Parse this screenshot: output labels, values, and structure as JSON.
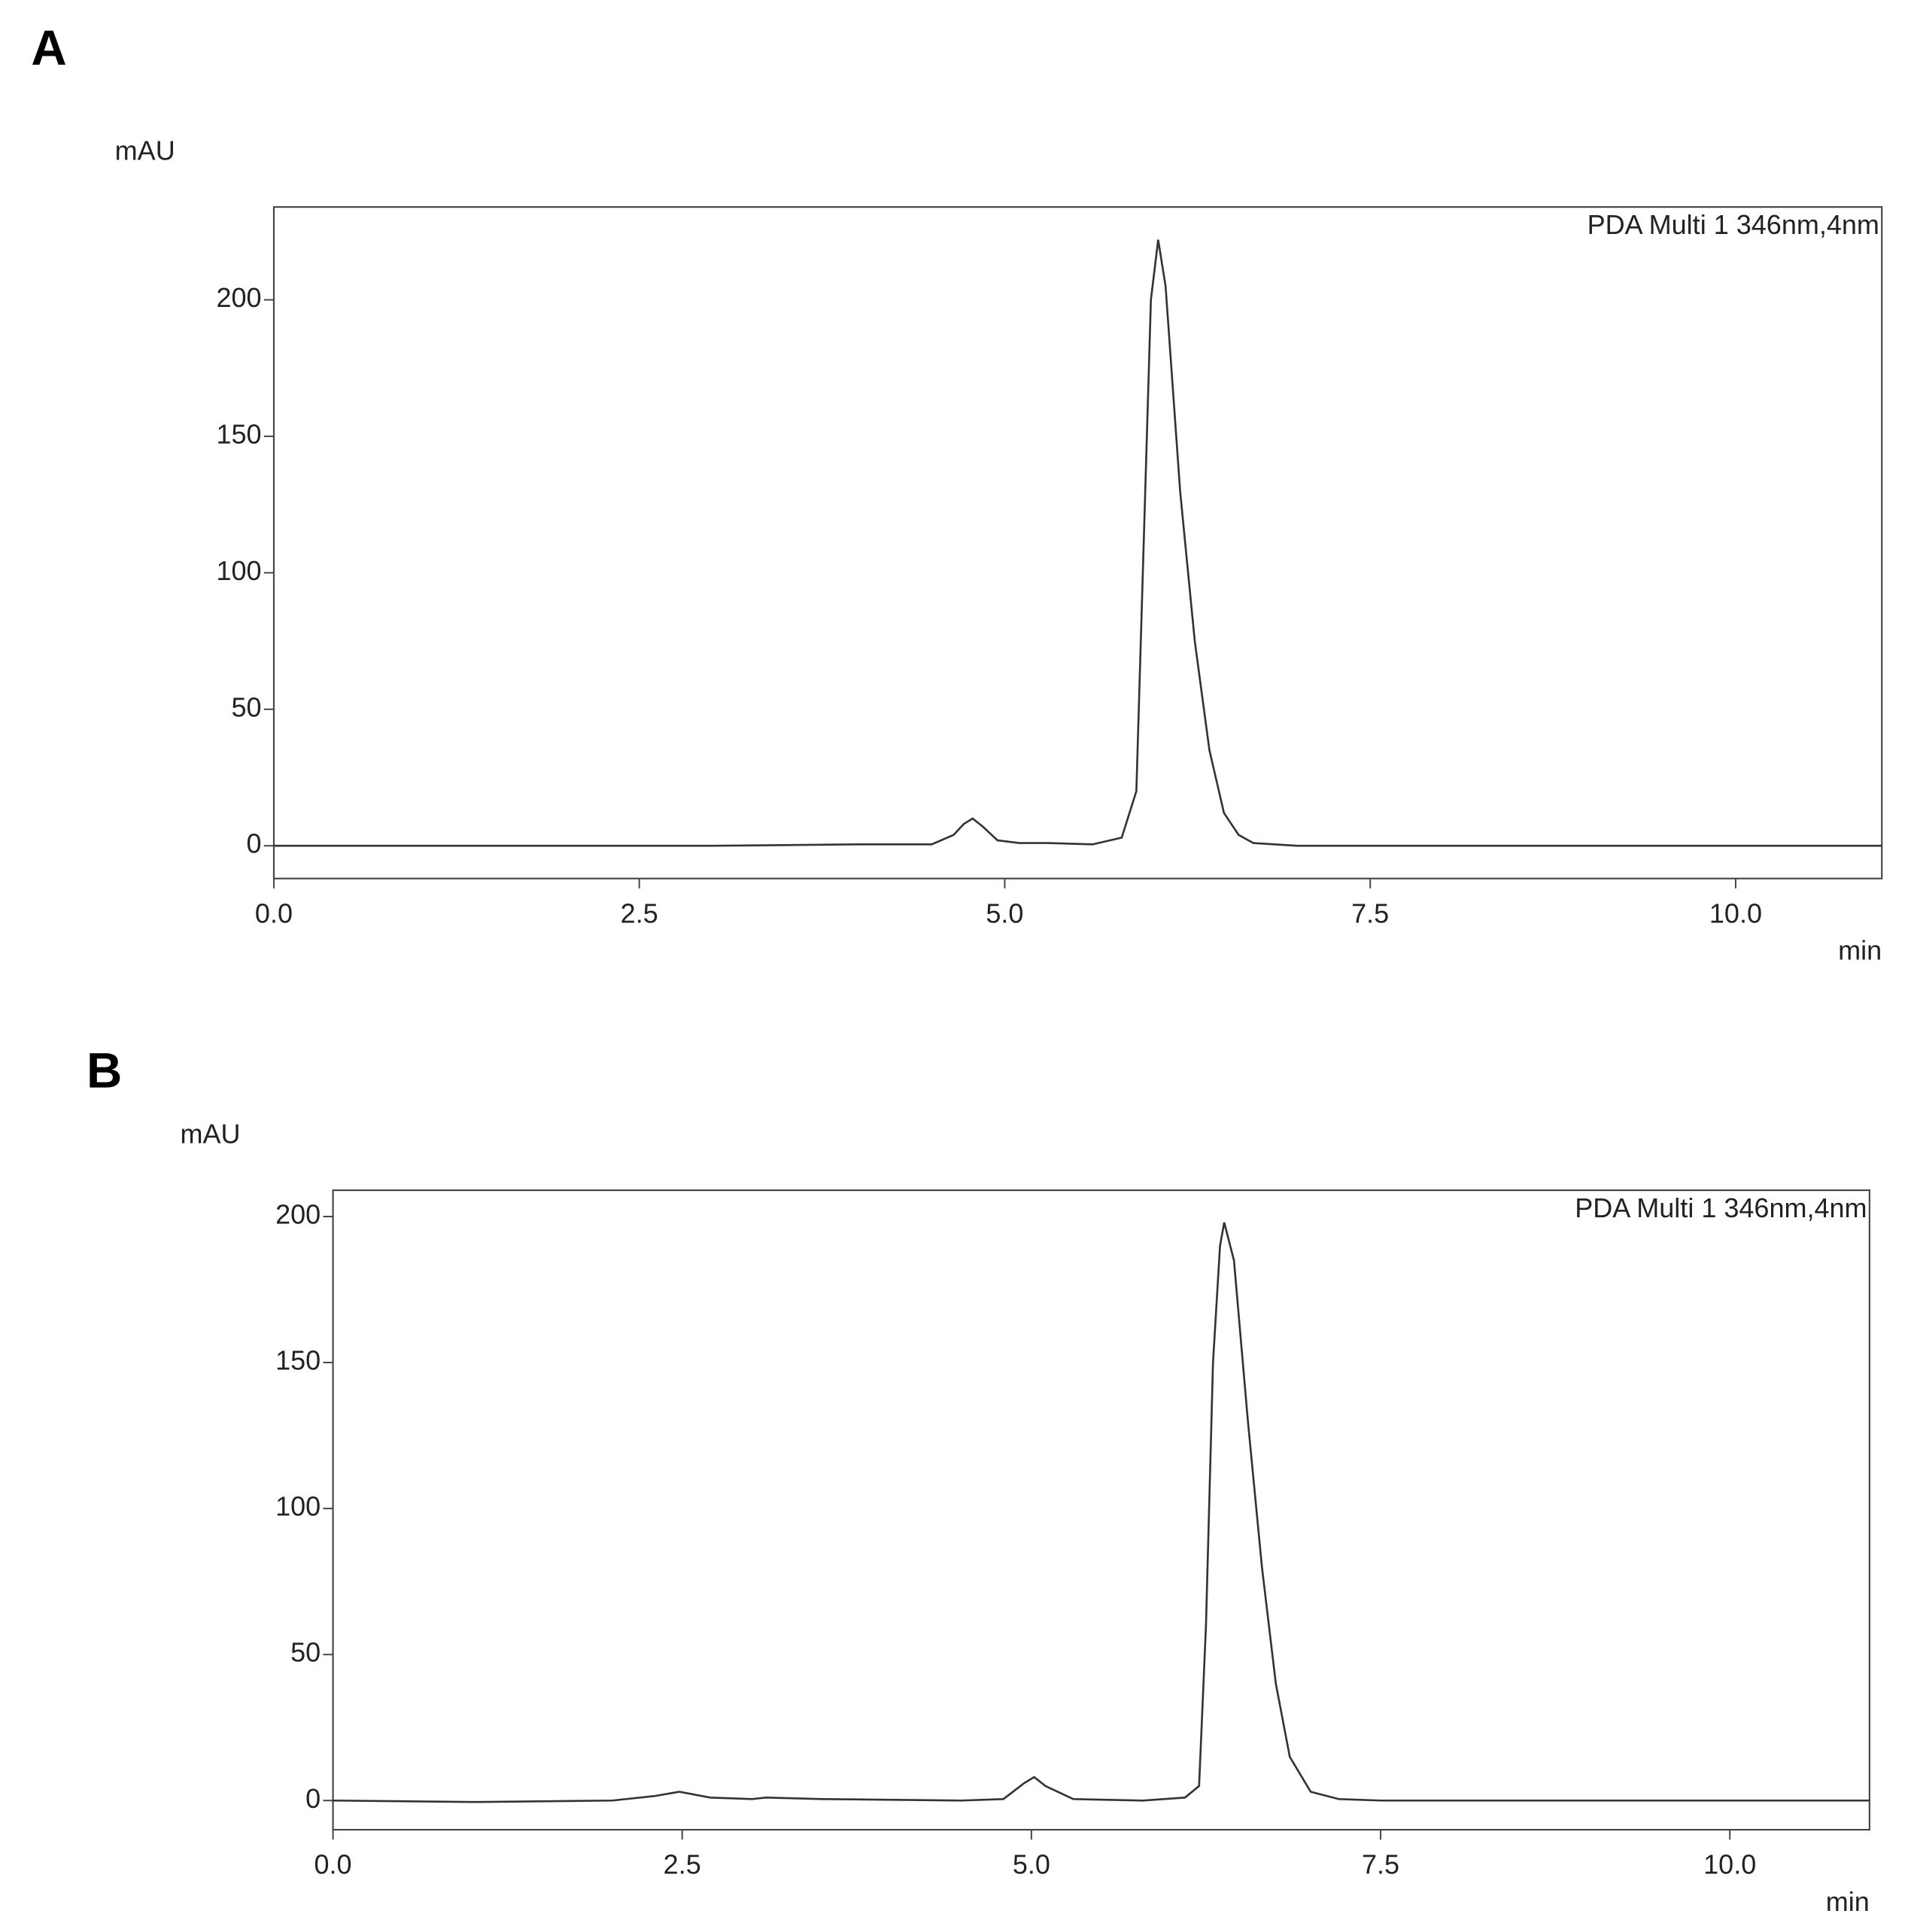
{
  "chart_data": [
    {
      "type": "line",
      "title": "A",
      "y_label": "mAU",
      "x_label": "min",
      "annotation": "PDA Multi 1 346nm,4nm",
      "xlim": [
        0,
        11
      ],
      "ylim": [
        -12,
        234
      ],
      "xticks": [
        {
          "value": 0,
          "label": "0.0"
        },
        {
          "value": 2.5,
          "label": "2.5"
        },
        {
          "value": 5,
          "label": "5.0"
        },
        {
          "value": 7.5,
          "label": "7.5"
        },
        {
          "value": 10,
          "label": "10.0"
        }
      ],
      "yticks": [
        0,
        50,
        100,
        150,
        200
      ],
      "color": "#333333",
      "x": [
        0,
        3,
        4,
        4.5,
        4.65,
        4.72,
        4.78,
        4.85,
        4.95,
        5.1,
        5.3,
        5.6,
        5.8,
        5.9,
        5.95,
        6.0,
        6.05,
        6.1,
        6.2,
        6.3,
        6.4,
        6.5,
        6.6,
        6.7,
        7,
        11
      ],
      "values": [
        0,
        0,
        0.5,
        0.5,
        4,
        8,
        10,
        7,
        2,
        1,
        1,
        0.5,
        3,
        20,
        110,
        200,
        222,
        205,
        130,
        75,
        35,
        12,
        4,
        1,
        0,
        0
      ]
    },
    {
      "type": "line",
      "title": "B",
      "y_label": "mAU",
      "x_label": "min",
      "annotation": "PDA Multi 1 346nm,4nm",
      "xlim": [
        0,
        11
      ],
      "ylim": [
        -10,
        209
      ],
      "xticks": [
        {
          "value": 0,
          "label": "0.0"
        },
        {
          "value": 2.5,
          "label": "2.5"
        },
        {
          "value": 5,
          "label": "5.0"
        },
        {
          "value": 7.5,
          "label": "7.5"
        },
        {
          "value": 10,
          "label": "10.0"
        }
      ],
      "yticks": [
        0,
        50,
        100,
        150,
        200
      ],
      "color": "#333333",
      "x": [
        0,
        1,
        2,
        2.3,
        2.48,
        2.7,
        3,
        3.1,
        3.5,
        4.5,
        4.8,
        4.95,
        5.02,
        5.1,
        5.3,
        5.8,
        6.1,
        6.2,
        6.25,
        6.3,
        6.35,
        6.38,
        6.45,
        6.55,
        6.65,
        6.75,
        6.85,
        7.0,
        7.2,
        7.5,
        11
      ],
      "values": [
        0,
        -0.5,
        0,
        1.5,
        3,
        1,
        0.5,
        1,
        0.5,
        0,
        0.5,
        6,
        8,
        5,
        0.5,
        0,
        1,
        5,
        60,
        150,
        190,
        198,
        185,
        130,
        80,
        40,
        15,
        3,
        0.5,
        0,
        0
      ]
    }
  ]
}
